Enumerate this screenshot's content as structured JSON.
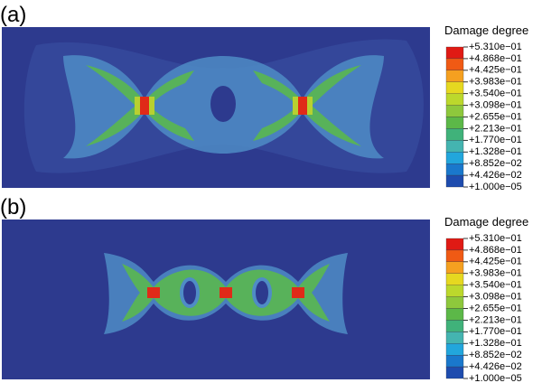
{
  "panels": [
    {
      "label": "(a)",
      "legend": {
        "title": "Damage degree",
        "levels": [
          "+5.310e−01",
          "+4.868e−01",
          "+4.425e−01",
          "+3.983e−01",
          "+3.540e−01",
          "+3.098e−01",
          "+2.655e−01",
          "+2.213e−01",
          "+1.770e−01",
          "+1.328e−01",
          "+8.852e−02",
          "+4.426e−02",
          "+1.000e−05"
        ]
      }
    },
    {
      "label": "(b)",
      "legend": {
        "title": "Damage degree",
        "levels": [
          "+5.310e−01",
          "+4.868e−01",
          "+4.425e−01",
          "+3.983e−01",
          "+3.540e−01",
          "+3.098e−01",
          "+2.655e−01",
          "+2.213e−01",
          "+1.770e−01",
          "+1.328e−01",
          "+8.852e−02",
          "+4.426e−02",
          "+1.000e−05"
        ]
      }
    }
  ]
}
